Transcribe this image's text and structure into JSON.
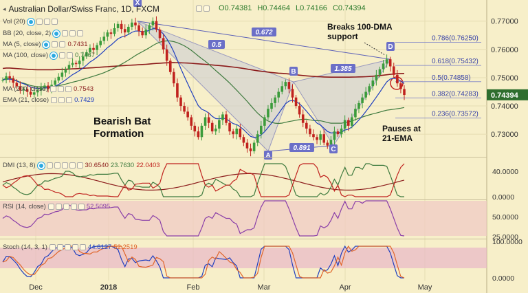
{
  "header": {
    "title": "Australian Dollar/Swiss Franc, 1D, FXCM",
    "ohlc": {
      "o": "O0.74381",
      "h": "H0.74464",
      "l": "L0.74166",
      "c": "C0.74394"
    }
  },
  "indicators_main": [
    {
      "label": "Vol (20)",
      "value": "",
      "color": "#888888"
    },
    {
      "label": "BB (20, close, 2)",
      "value": "",
      "color": "#888888"
    },
    {
      "label": "MA (5, close)",
      "value": "0.7431",
      "color": "#8b2020"
    },
    {
      "label": "MA (100, close)",
      "value": "0.7467",
      "color": "#3e7a3e"
    },
    {
      "label": "MA (200, close)",
      "value": "0.7543",
      "color": "#8b2020"
    },
    {
      "label": "EMA (21, close)",
      "value": "0.7429",
      "color": "#1f3fbf"
    }
  ],
  "annotations": {
    "pattern": "Bearish Bat\nFormation",
    "breaks": "Breaks 100-DMA\nsupport",
    "pauses": "Pauses at\n21-EMA"
  },
  "fib_labels": {
    "r786": "0.786(0.76250)",
    "r618": "0.618(0.75432)",
    "r5": "0.5(0.74858)",
    "r382": "0.382(0.74283)",
    "r236": "0.236(0.73572)"
  },
  "pattern_points": {
    "X": "X",
    "A": "A",
    "B": "B",
    "C": "C",
    "D": "D"
  },
  "ratio_labels": {
    "r1": "0.672",
    "r2": "0.5",
    "r3": "1.385",
    "r4": "0.891"
  },
  "price_badge": "0.74394",
  "colors": {
    "up": "#3b9b3b",
    "down": "#c0221e",
    "bg": "#f7efc9",
    "ma100": "#3e7a3e",
    "ma200": "#8b1a1a",
    "ema21": "#1f3fbf",
    "pattern_fill": "#cfcfd4",
    "badge": "#2e6e2e"
  },
  "chart_data": [
    {
      "type": "candlestick",
      "title": "Australian Dollar/Swiss Franc, 1D, FXCM",
      "yticks": [
        "0.77000",
        "0.76000",
        "0.75000",
        "0.74000",
        "0.73000"
      ],
      "xticks": [
        "Dec",
        "2018",
        "Feb",
        "Mar",
        "Apr",
        "May"
      ],
      "ylim": [
        0.7225,
        0.7765
      ],
      "fib_levels": [
        0.7625,
        0.75432,
        0.74858,
        0.74283,
        0.73572
      ],
      "xabcd": {
        "X": 0.77,
        "A": 0.724,
        "B": 0.7485,
        "C": 0.726,
        "D": 0.7565
      },
      "last_close": 0.74394,
      "closes": [
        0.7492,
        0.7505,
        0.7498,
        0.7482,
        0.747,
        0.7455,
        0.746,
        0.745,
        0.744,
        0.7448,
        0.7455,
        0.7465,
        0.7472,
        0.746,
        0.7475,
        0.749,
        0.7503,
        0.7518,
        0.753,
        0.7545,
        0.7552,
        0.7548,
        0.756,
        0.7575,
        0.759,
        0.7605,
        0.7598,
        0.7615,
        0.763,
        0.7645,
        0.766,
        0.7655,
        0.7675,
        0.769,
        0.7672,
        0.766,
        0.768,
        0.7695,
        0.7685,
        0.7665,
        0.765,
        0.767,
        0.7685,
        0.77,
        0.767,
        0.764,
        0.76,
        0.756,
        0.752,
        0.748,
        0.743,
        0.74,
        0.738,
        0.736,
        0.733,
        0.731,
        0.729,
        0.733,
        0.736,
        0.734,
        0.731,
        0.732,
        0.735,
        0.737,
        0.734,
        0.731,
        0.73,
        0.732,
        0.729,
        0.727,
        0.725,
        0.724,
        0.727,
        0.73,
        0.733,
        0.736,
        0.739,
        0.741,
        0.743,
        0.745,
        0.747,
        0.7485,
        0.746,
        0.743,
        0.74,
        0.737,
        0.734,
        0.732,
        0.73,
        0.729,
        0.728,
        0.73,
        0.727,
        0.726,
        0.728,
        0.731,
        0.73,
        0.732,
        0.735,
        0.733,
        0.736,
        0.739,
        0.741,
        0.743,
        0.745,
        0.747,
        0.749,
        0.751,
        0.753,
        0.755,
        0.7565,
        0.754,
        0.751,
        0.748,
        0.746,
        0.7439
      ]
    },
    {
      "type": "line",
      "title": "DMI (13, 8)",
      "values_printed": [
        "30.6540",
        "23.7630",
        "22.0403"
      ],
      "yticks": [
        "40.0000",
        "0.0000"
      ],
      "ylim": [
        0,
        55
      ]
    },
    {
      "type": "line",
      "title": "RSI (14, close)",
      "values_printed": [
        "52.5095"
      ],
      "yticks": [
        "50.0000",
        "25.0000"
      ],
      "ylim": [
        20,
        80
      ]
    },
    {
      "type": "line",
      "title": "Stoch (14, 3, 1)",
      "values_printed": [
        "44.6127",
        "52.2519"
      ],
      "yticks": [
        "100.0000",
        "0.0000"
      ],
      "ylim": [
        0,
        100
      ]
    }
  ]
}
